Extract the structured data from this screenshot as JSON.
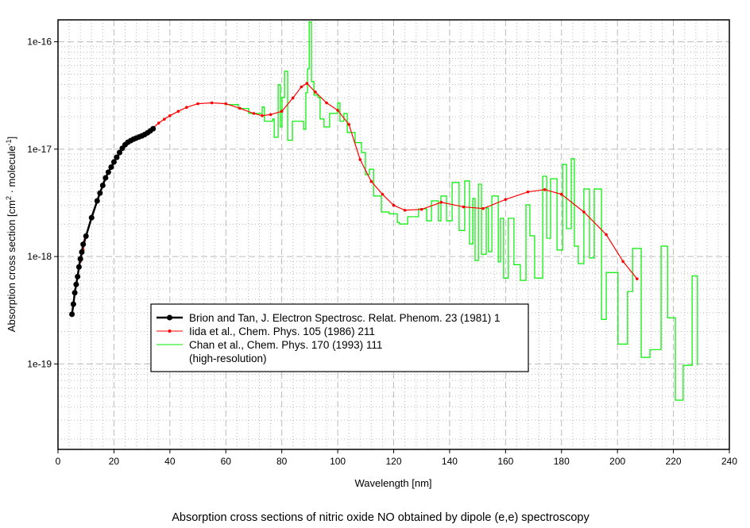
{
  "chart_data": {
    "type": "line",
    "title": "Absorption cross sections of nitric oxide NO obtained by dipole (e,e) spectroscopy",
    "xlabel": "Wavelength [nm]",
    "ylabel": {
      "main": "Absorption cross section [cm",
      "sup1": "2",
      "mid": " · molecule",
      "sup2": "-1",
      "end": "]"
    },
    "xlim": [
      0,
      240
    ],
    "ylim": [
      1.6e-20,
      1.6e-16
    ],
    "yscale": "log",
    "grid": true,
    "x_ticks": [
      0,
      20,
      40,
      60,
      80,
      100,
      120,
      140,
      160,
      180,
      200,
      220,
      240
    ],
    "x_tick_labels": [
      "0",
      "20",
      "40",
      "60",
      "80",
      "100",
      "120",
      "140",
      "160",
      "180",
      "200",
      "220",
      "240"
    ],
    "y_ticks": [
      1e-16,
      1e-17,
      1e-18,
      1e-19
    ],
    "y_tick_labels": [
      "1e-16",
      "1e-17",
      "1e-18",
      "1e-19"
    ],
    "legend_placement": "lower-left",
    "series": [
      {
        "name": "Brion and Tan, J. Electron Spectrosc. Relat. Phenom. 23 (1981) 1",
        "color": "#000000",
        "x": [
          5,
          5.5,
          6,
          6.5,
          7,
          7.5,
          8,
          8.5,
          9,
          10,
          12,
          14,
          15,
          16,
          17,
          18,
          19,
          20,
          21,
          22,
          23,
          24,
          25,
          26,
          27,
          28,
          29,
          30,
          31,
          32,
          33,
          34
        ],
        "y": [
          2.9e-19,
          3.6e-19,
          4.6e-19,
          5.5e-19,
          6.5e-19,
          8e-19,
          9.5e-19,
          1.1e-18,
          1.3e-18,
          1.55e-18,
          2.3e-18,
          3.3e-18,
          3.9e-18,
          4.6e-18,
          5.4e-18,
          6.1e-18,
          6.8e-18,
          7.6e-18,
          8.4e-18,
          9.3e-18,
          1.02e-17,
          1.1e-17,
          1.16e-17,
          1.2e-17,
          1.24e-17,
          1.27e-17,
          1.3e-17,
          1.33e-17,
          1.37e-17,
          1.42e-17,
          1.48e-17,
          1.55e-17
        ]
      },
      {
        "name": "Iida et al., Chem. Phys. 105 (1986) 211",
        "color": "#ff0000",
        "x": [
          7,
          8,
          9,
          10,
          12,
          14,
          16,
          18,
          20,
          22,
          24,
          26,
          28,
          30,
          32,
          34,
          36,
          38,
          40,
          43,
          46,
          50,
          55,
          60,
          65,
          70,
          73,
          76,
          80,
          84,
          87,
          89,
          92,
          96,
          100,
          104,
          108,
          112,
          116,
          120,
          124,
          130,
          137,
          145,
          152,
          160,
          168,
          174,
          180,
          188,
          196,
          202,
          207
        ],
        "y": [
          6.5e-19,
          9e-19,
          1.15e-18,
          1.5e-18,
          2.3e-18,
          3.3e-18,
          4.6e-18,
          6e-18,
          7.6e-18,
          9.3e-18,
          1.1e-17,
          1.2e-17,
          1.27e-17,
          1.34e-17,
          1.45e-17,
          1.58e-17,
          1.75e-17,
          1.9e-17,
          2.05e-17,
          2.25e-17,
          2.45e-17,
          2.65e-17,
          2.7e-17,
          2.65e-17,
          2.4e-17,
          2.15e-17,
          2.05e-17,
          2.1e-17,
          2.25e-17,
          3e-17,
          3.8e-17,
          4.1e-17,
          3.4e-17,
          2.7e-17,
          2.3e-17,
          1.7e-17,
          8e-18,
          5e-18,
          3.8e-18,
          3e-18,
          2.7e-18,
          2.75e-18,
          3.2e-18,
          2.9e-18,
          2.8e-18,
          3.4e-18,
          4e-18,
          4.2e-18,
          3.8e-18,
          2.6e-18,
          1.6e-18,
          9e-19,
          6.2e-19
        ]
      },
      {
        "name": "Chan et al., Chem. Phys. 170 (1993) 111",
        "name2": "(high-resolution)",
        "color": "#00ee00",
        "x": [
          60,
          64.5,
          68.2,
          73.0,
          73.8,
          76.7,
          77.3,
          78.7,
          79.5,
          80.1,
          81.0,
          82.1,
          83.8,
          86.3,
          87.8,
          88.6,
          89.2,
          89.8,
          90.6,
          91.5,
          92.9,
          93.7,
          95.1,
          97.1,
          100.0,
          100.8,
          102.2,
          103.4,
          106.2,
          108.5,
          109.9,
          111.3,
          112.8,
          115.6,
          118.4,
          121.3,
          122.1,
          125.0,
          128.9,
          131.8,
          133.5,
          136.0,
          136.9,
          138.9,
          140.9,
          143.4,
          145.4,
          147.1,
          148.3,
          149.1,
          150.3,
          151.4,
          153.1,
          153.9,
          155.1,
          157.4,
          158.2,
          159.3,
          161.0,
          163.0,
          165.3,
          167.3,
          168.7,
          170.4,
          173.3,
          174.7,
          176.1,
          178.4,
          180.4,
          181.8,
          183.5,
          184.6,
          186.0,
          188.0,
          190.0,
          191.7,
          194.3,
          196.0,
          200.2,
          203.6,
          205.4,
          208.5,
          211.6,
          215.6,
          217.9,
          220.7,
          223.5,
          226.7,
          228.6
        ],
        "y": [
          2.6e-17,
          2.39e-17,
          2.15e-17,
          2.47e-17,
          1.82e-17,
          1.91e-17,
          1.29e-17,
          3.98e-17,
          1.61e-17,
          3.03e-17,
          5.32e-17,
          1.21e-17,
          1.82e-17,
          1.82e-17,
          1.53e-17,
          3.36e-17,
          5.6e-17,
          1.53e-16,
          4.26e-17,
          3.19e-17,
          3.03e-17,
          1.91e-17,
          1.61e-17,
          2.15e-17,
          2.69e-17,
          1.82e-17,
          2.15e-17,
          1.43e-17,
          1.15e-17,
          9.3e-18,
          5.8e-18,
          6.5e-18,
          3.66e-18,
          2.6e-18,
          2.5e-18,
          2.08e-18,
          2.01e-18,
          2.35e-18,
          2.78e-18,
          2.15e-18,
          3.3e-18,
          2.15e-18,
          3.66e-18,
          2.15e-18,
          4.89e-18,
          1.75e-18,
          5.06e-18,
          1.31e-18,
          3.47e-18,
          9.2e-19,
          4.72e-18,
          1.05e-18,
          2.83e-18,
          1.11e-18,
          3.66e-18,
          8.9e-19,
          2.27e-18,
          6.3e-19,
          2.27e-18,
          8.4e-19,
          6e-19,
          3.03e-18,
          1.56e-18,
          6.3e-19,
          5.6e-18,
          1.48e-18,
          5.3e-18,
          1.15e-18,
          7.2e-18,
          1.82e-18,
          8.15e-18,
          1.25e-18,
          8.6e-19,
          4.26e-18,
          9.7e-19,
          4.26e-18,
          2.6e-19,
          7.1e-19,
          1.53e-19,
          4.72e-19,
          1.19e-18,
          1.15e-19,
          1.36e-19,
          1.25e-18,
          2.69e-19,
          4.6e-20,
          9.7e-20,
          6.6e-19,
          9.7e-20
        ]
      }
    ]
  }
}
